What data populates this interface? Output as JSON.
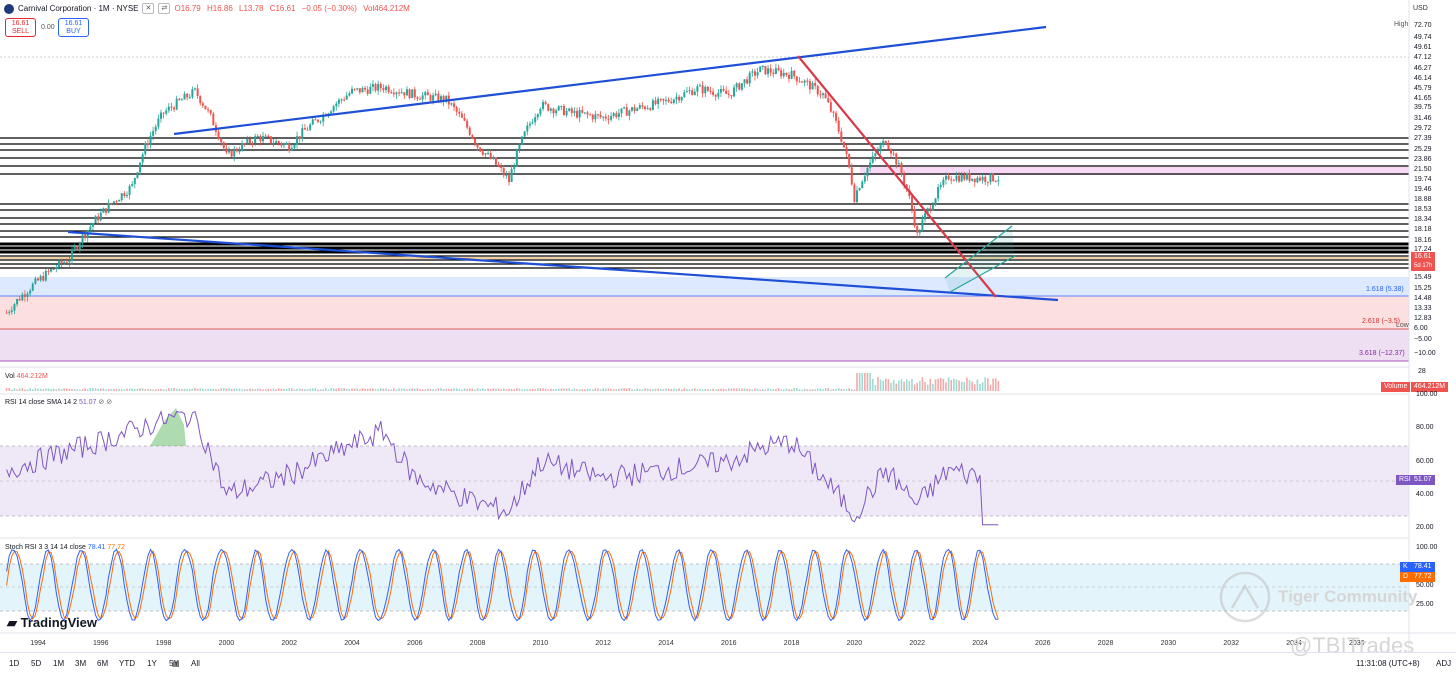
{
  "header": {
    "symbol_title": "Carnival Corporation · 1M · NYSE",
    "open": "O16.79",
    "high": "H16.86",
    "low": "L13.78",
    "close": "C16.61",
    "change": "−0.05 (−0.30%)",
    "volume": "Vol464.212M"
  },
  "trade": {
    "sell_price": "16.61",
    "sell_label": "SELL",
    "spread": "0.00",
    "buy_price": "16.61",
    "buy_label": "BUY"
  },
  "axis": {
    "currency": "USD",
    "price_ticks": [
      "72.70",
      "49.74",
      "49.61",
      "47.12",
      "46.27",
      "46.14",
      "45.79",
      "41.65",
      "39.75",
      "31.46",
      "29.72",
      "27.39",
      "25.29",
      "23.86",
      "21.50",
      "19.74",
      "19.46",
      "18.88",
      "18.53",
      "18.34",
      "18.18",
      "18.16",
      "17.24",
      "15.49",
      "15.25",
      "14.48",
      "13.33",
      "12.83",
      "6.00",
      "−5.00",
      "−10.00"
    ],
    "high_label": "High",
    "low_label": "Low",
    "price_tag": "16.61",
    "countdown": "5d 17h",
    "volume_tag_label": "Volume",
    "volume_tag_value": "464.212M",
    "rsi_ticks": [
      "100.00",
      "80.00",
      "60.00",
      "40.00",
      "20.00"
    ],
    "rsi_tag_label": "RSI",
    "rsi_tag_value": "51.07",
    "stoch_ticks": [
      "100.00",
      "50.00",
      "25.00"
    ],
    "stoch_k_label": "K",
    "stoch_k_value": "78.41",
    "stoch_d_label": "D",
    "stoch_d_value": "77.72",
    "years": [
      "1994",
      "1996",
      "1998",
      "2000",
      "2002",
      "2004",
      "2006",
      "2008",
      "2010",
      "2012",
      "2014",
      "2016",
      "2018",
      "2020",
      "2022",
      "2024",
      "2026",
      "2028",
      "2030",
      "2032",
      "2034",
      "2036"
    ]
  },
  "fib_labels": [
    "1.618 (5.38)",
    "2.618 (−3.5)",
    "3.618 (−12.37)"
  ],
  "volume_pane": {
    "title": "Vol",
    "value": "464.212M",
    "ticks": [
      "28"
    ]
  },
  "rsi_pane": {
    "title": "RSI 14 close SMA 14 2",
    "value": "51.07"
  },
  "stoch_pane": {
    "title": "Stoch RSI 3 3 14 14 close",
    "k": "78.41",
    "d": "77.72"
  },
  "brand": "TradingView",
  "timeframes": [
    "1D",
    "5D",
    "1M",
    "3M",
    "6M",
    "YTD",
    "1Y",
    "5Y",
    "All"
  ],
  "footer": {
    "time": "11:31:08 (UTC+8)",
    "adj": "ADJ"
  },
  "watermarks": {
    "community": "Tiger Community",
    "handle": "@TBITrades"
  },
  "colors": {
    "up": "#26a69a",
    "down": "#ef5350",
    "trendline_blue": "#1e4fd6",
    "trendline_red": "#d83a4a",
    "rsi": "#7e57c2",
    "stoch_k": "#2962ff",
    "stoch_d": "#ff6d00"
  },
  "chart_data": [
    {
      "type": "candlestick",
      "title": "Carnival Corporation · 1M · NYSE",
      "x_range": [
        "1993",
        "2036"
      ],
      "y_scale": "log",
      "approx_monthly_close": [
        {
          "x": "1993",
          "y": 3
        },
        {
          "x": "1995",
          "y": 6
        },
        {
          "x": "1997",
          "y": 15
        },
        {
          "x": "1998",
          "y": 38
        },
        {
          "x": "1999",
          "y": 50
        },
        {
          "x": "2000",
          "y": 22
        },
        {
          "x": "2001",
          "y": 28
        },
        {
          "x": "2002",
          "y": 25
        },
        {
          "x": "2003",
          "y": 36
        },
        {
          "x": "2004",
          "y": 50
        },
        {
          "x": "2005",
          "y": 53
        },
        {
          "x": "2006",
          "y": 48
        },
        {
          "x": "2007",
          "y": 45
        },
        {
          "x": "2008",
          "y": 25
        },
        {
          "x": "2009",
          "y": 16
        },
        {
          "x": "2010",
          "y": 42
        },
        {
          "x": "2011",
          "y": 38
        },
        {
          "x": "2012",
          "y": 36
        },
        {
          "x": "2013",
          "y": 40
        },
        {
          "x": "2014",
          "y": 44
        },
        {
          "x": "2015",
          "y": 52
        },
        {
          "x": "2016",
          "y": 48
        },
        {
          "x": "2017",
          "y": 66
        },
        {
          "x": "2018",
          "y": 62
        },
        {
          "x": "2019",
          "y": 48
        },
        {
          "x": "2020",
          "y": 13
        },
        {
          "x": "2021",
          "y": 27
        },
        {
          "x": "2022",
          "y": 8
        },
        {
          "x": "2023",
          "y": 17
        },
        {
          "x": "2024",
          "y": 16.61
        }
      ],
      "latest": {
        "open": 16.79,
        "high": 16.86,
        "low": 13.78,
        "close": 16.61,
        "change": -0.05,
        "change_pct": -0.3,
        "volume": "464.212M"
      }
    },
    {
      "type": "line",
      "title": "RSI 14 close SMA 14 2",
      "ylim": [
        20,
        100
      ],
      "x": [
        "1993",
        "1996",
        "1998",
        "1999",
        "2000",
        "2002",
        "2004",
        "2005",
        "2006",
        "2008",
        "2009",
        "2010",
        "2012",
        "2014",
        "2016",
        "2017",
        "2018",
        "2019",
        "2020",
        "2021",
        "2022",
        "2023",
        "2024"
      ],
      "series": [
        {
          "name": "RSI",
          "values": [
            55,
            72,
            85,
            88,
            40,
            52,
            70,
            78,
            50,
            35,
            30,
            60,
            50,
            55,
            60,
            68,
            72,
            50,
            28,
            55,
            34,
            55,
            51.07
          ]
        }
      ],
      "bands": [
        70,
        50,
        30
      ]
    },
    {
      "type": "line",
      "title": "Stoch RSI 3 3 14 14 close",
      "ylim": [
        0,
        100
      ],
      "x": [
        "2020",
        "2021",
        "2022",
        "2023",
        "2024"
      ],
      "series": [
        {
          "name": "K",
          "values": [
            5,
            90,
            8,
            95,
            78.41
          ]
        },
        {
          "name": "D",
          "values": [
            10,
            85,
            12,
            90,
            77.72
          ]
        }
      ],
      "bands": [
        80,
        20
      ]
    }
  ]
}
